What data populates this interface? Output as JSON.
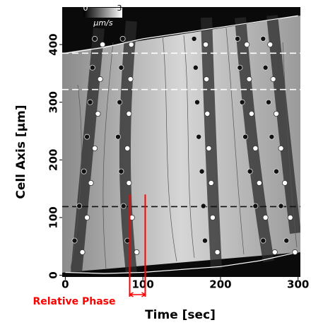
{
  "chart_data": {
    "type": "kymograph",
    "x_label": "Time [sec]",
    "y_label": "Cell Axis [μm]",
    "xlim": [
      -4,
      303
    ],
    "ylim": [
      -3,
      465
    ],
    "xticks": [
      0,
      100,
      200,
      300
    ],
    "yticks": [
      0,
      100,
      200,
      300,
      400
    ],
    "colorbar": {
      "clim": [
        0,
        3
      ],
      "ticks": [
        0,
        3
      ],
      "label": "μm/s"
    },
    "hlines": [
      {
        "value": 385,
        "color": "#ffffff"
      },
      {
        "value": 322,
        "color": "#ffffff"
      },
      {
        "value": 119,
        "color": "#111111"
      }
    ],
    "series": [
      {
        "marker": "line",
        "color": "#ffffff",
        "x": [
          0,
          50,
          100,
          150,
          200,
          250,
          300
        ],
        "values": [
          385,
          395,
          410,
          420,
          430,
          440,
          450
        ]
      },
      {
        "marker": "line",
        "color": "#ffffff",
        "x": [
          0,
          50,
          100,
          150,
          200,
          250,
          300
        ],
        "values": [
          5,
          3,
          5,
          10,
          15,
          25,
          40
        ]
      },
      {
        "marker": "circle",
        "color": "#ffffff",
        "x": [
          22,
          28,
          33,
          38,
          42,
          45,
          48
        ],
        "values": [
          40,
          100,
          160,
          220,
          280,
          340,
          400
        ]
      },
      {
        "marker": "circle",
        "color": "#ffffff",
        "x": [
          92,
          86,
          82,
          80,
          82,
          84,
          85
        ],
        "values": [
          40,
          100,
          160,
          220,
          280,
          340,
          400
        ]
      },
      {
        "marker": "circle",
        "color": "#ffffff",
        "x": [
          196,
          190,
          188,
          185,
          183,
          182,
          181
        ],
        "values": [
          40,
          100,
          160,
          220,
          280,
          340,
          400
        ]
      },
      {
        "marker": "circle",
        "color": "#ffffff",
        "x": [
          270,
          258,
          250,
          245,
          240,
          237,
          234
        ],
        "values": [
          40,
          100,
          160,
          220,
          280,
          340,
          400
        ]
      },
      {
        "marker": "circle",
        "color": "#ffffff",
        "x": [
          296,
          290,
          283,
          278,
          272,
          268,
          264
        ],
        "values": [
          40,
          100,
          160,
          220,
          280,
          340,
          400
        ]
      },
      {
        "marker": "circle",
        "color": "#111111",
        "x": [
          12,
          18,
          24,
          28,
          32,
          35,
          38
        ],
        "values": [
          60,
          120,
          180,
          240,
          300,
          360,
          410
        ]
      },
      {
        "marker": "circle",
        "color": "#111111",
        "x": [
          80,
          75,
          72,
          68,
          70,
          72,
          74
        ],
        "values": [
          60,
          120,
          180,
          240,
          300,
          360,
          410
        ]
      },
      {
        "marker": "circle",
        "color": "#111111",
        "x": [
          180,
          178,
          176,
          172,
          170,
          168,
          166
        ],
        "values": [
          60,
          120,
          180,
          240,
          300,
          360,
          410
        ]
      },
      {
        "marker": "circle",
        "color": "#111111",
        "x": [
          255,
          245,
          238,
          232,
          228,
          225,
          222
        ],
        "values": [
          60,
          120,
          180,
          240,
          300,
          360,
          410
        ]
      },
      {
        "marker": "circle",
        "color": "#111111",
        "x": [
          285,
          278,
          272,
          266,
          262,
          258,
          255
        ],
        "values": [
          60,
          120,
          180,
          240,
          300,
          360,
          410
        ]
      }
    ],
    "annotation": {
      "text": "Relative Phase",
      "color": "#ff0000",
      "x": [
        83,
        103
      ],
      "y": 140
    }
  }
}
